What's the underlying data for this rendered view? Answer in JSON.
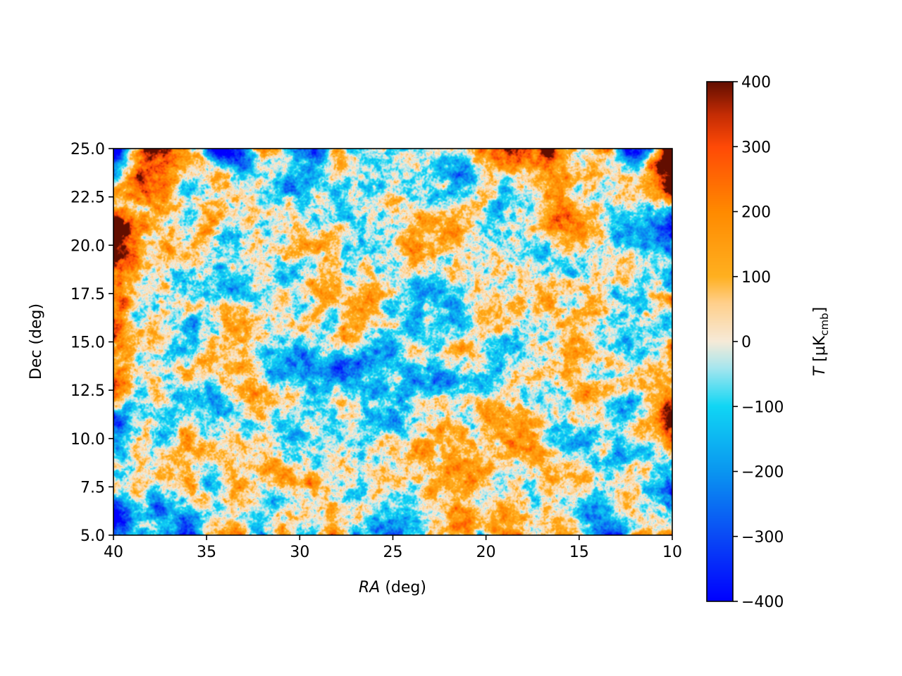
{
  "chart_data": {
    "type": "heatmap",
    "title": "",
    "xlabel": "RA",
    "xlabel_unit": "(deg)",
    "ylabel": "Dec (deg)",
    "xlim": [
      40,
      10
    ],
    "ylim": [
      5.0,
      25.0
    ],
    "x_ticks": [
      40,
      35,
      30,
      25,
      20,
      15,
      10
    ],
    "x_tick_labels": [
      "40",
      "35",
      "30",
      "25",
      "20",
      "15",
      "10"
    ],
    "y_ticks": [
      5.0,
      7.5,
      10.0,
      12.5,
      15.0,
      17.5,
      20.0,
      22.5,
      25.0
    ],
    "y_tick_labels": [
      "5.0",
      "7.5",
      "10.0",
      "12.5",
      "15.0",
      "17.5",
      "20.0",
      "22.5",
      "25.0"
    ],
    "colorbar": {
      "label_symbol": "T",
      "label_unit": "[μK",
      "label_sub": "cmb",
      "label_close": "]",
      "vmin": -400,
      "vmax": 400,
      "ticks": [
        400,
        300,
        200,
        100,
        0,
        -100,
        -200,
        -300,
        -400
      ],
      "tick_labels": [
        "400",
        "300",
        "200",
        "100",
        "0",
        "−100",
        "−200",
        "−300",
        "−400"
      ],
      "colormap_stops": [
        {
          "value": -400,
          "color": "#0000ff"
        },
        {
          "value": -300,
          "color": "#0a4af5"
        },
        {
          "value": -200,
          "color": "#0a96f0"
        },
        {
          "value": -100,
          "color": "#10d6f4"
        },
        {
          "value": -40,
          "color": "#a8e6ee"
        },
        {
          "value": 0,
          "color": "#f6ead8"
        },
        {
          "value": 60,
          "color": "#ffcf8a"
        },
        {
          "value": 100,
          "color": "#ffb020"
        },
        {
          "value": 200,
          "color": "#ff8a00"
        },
        {
          "value": 300,
          "color": "#ff4a06"
        },
        {
          "value": 350,
          "color": "#c42c04"
        },
        {
          "value": 400,
          "color": "#620e00"
        }
      ]
    },
    "field_rms": 110
  }
}
